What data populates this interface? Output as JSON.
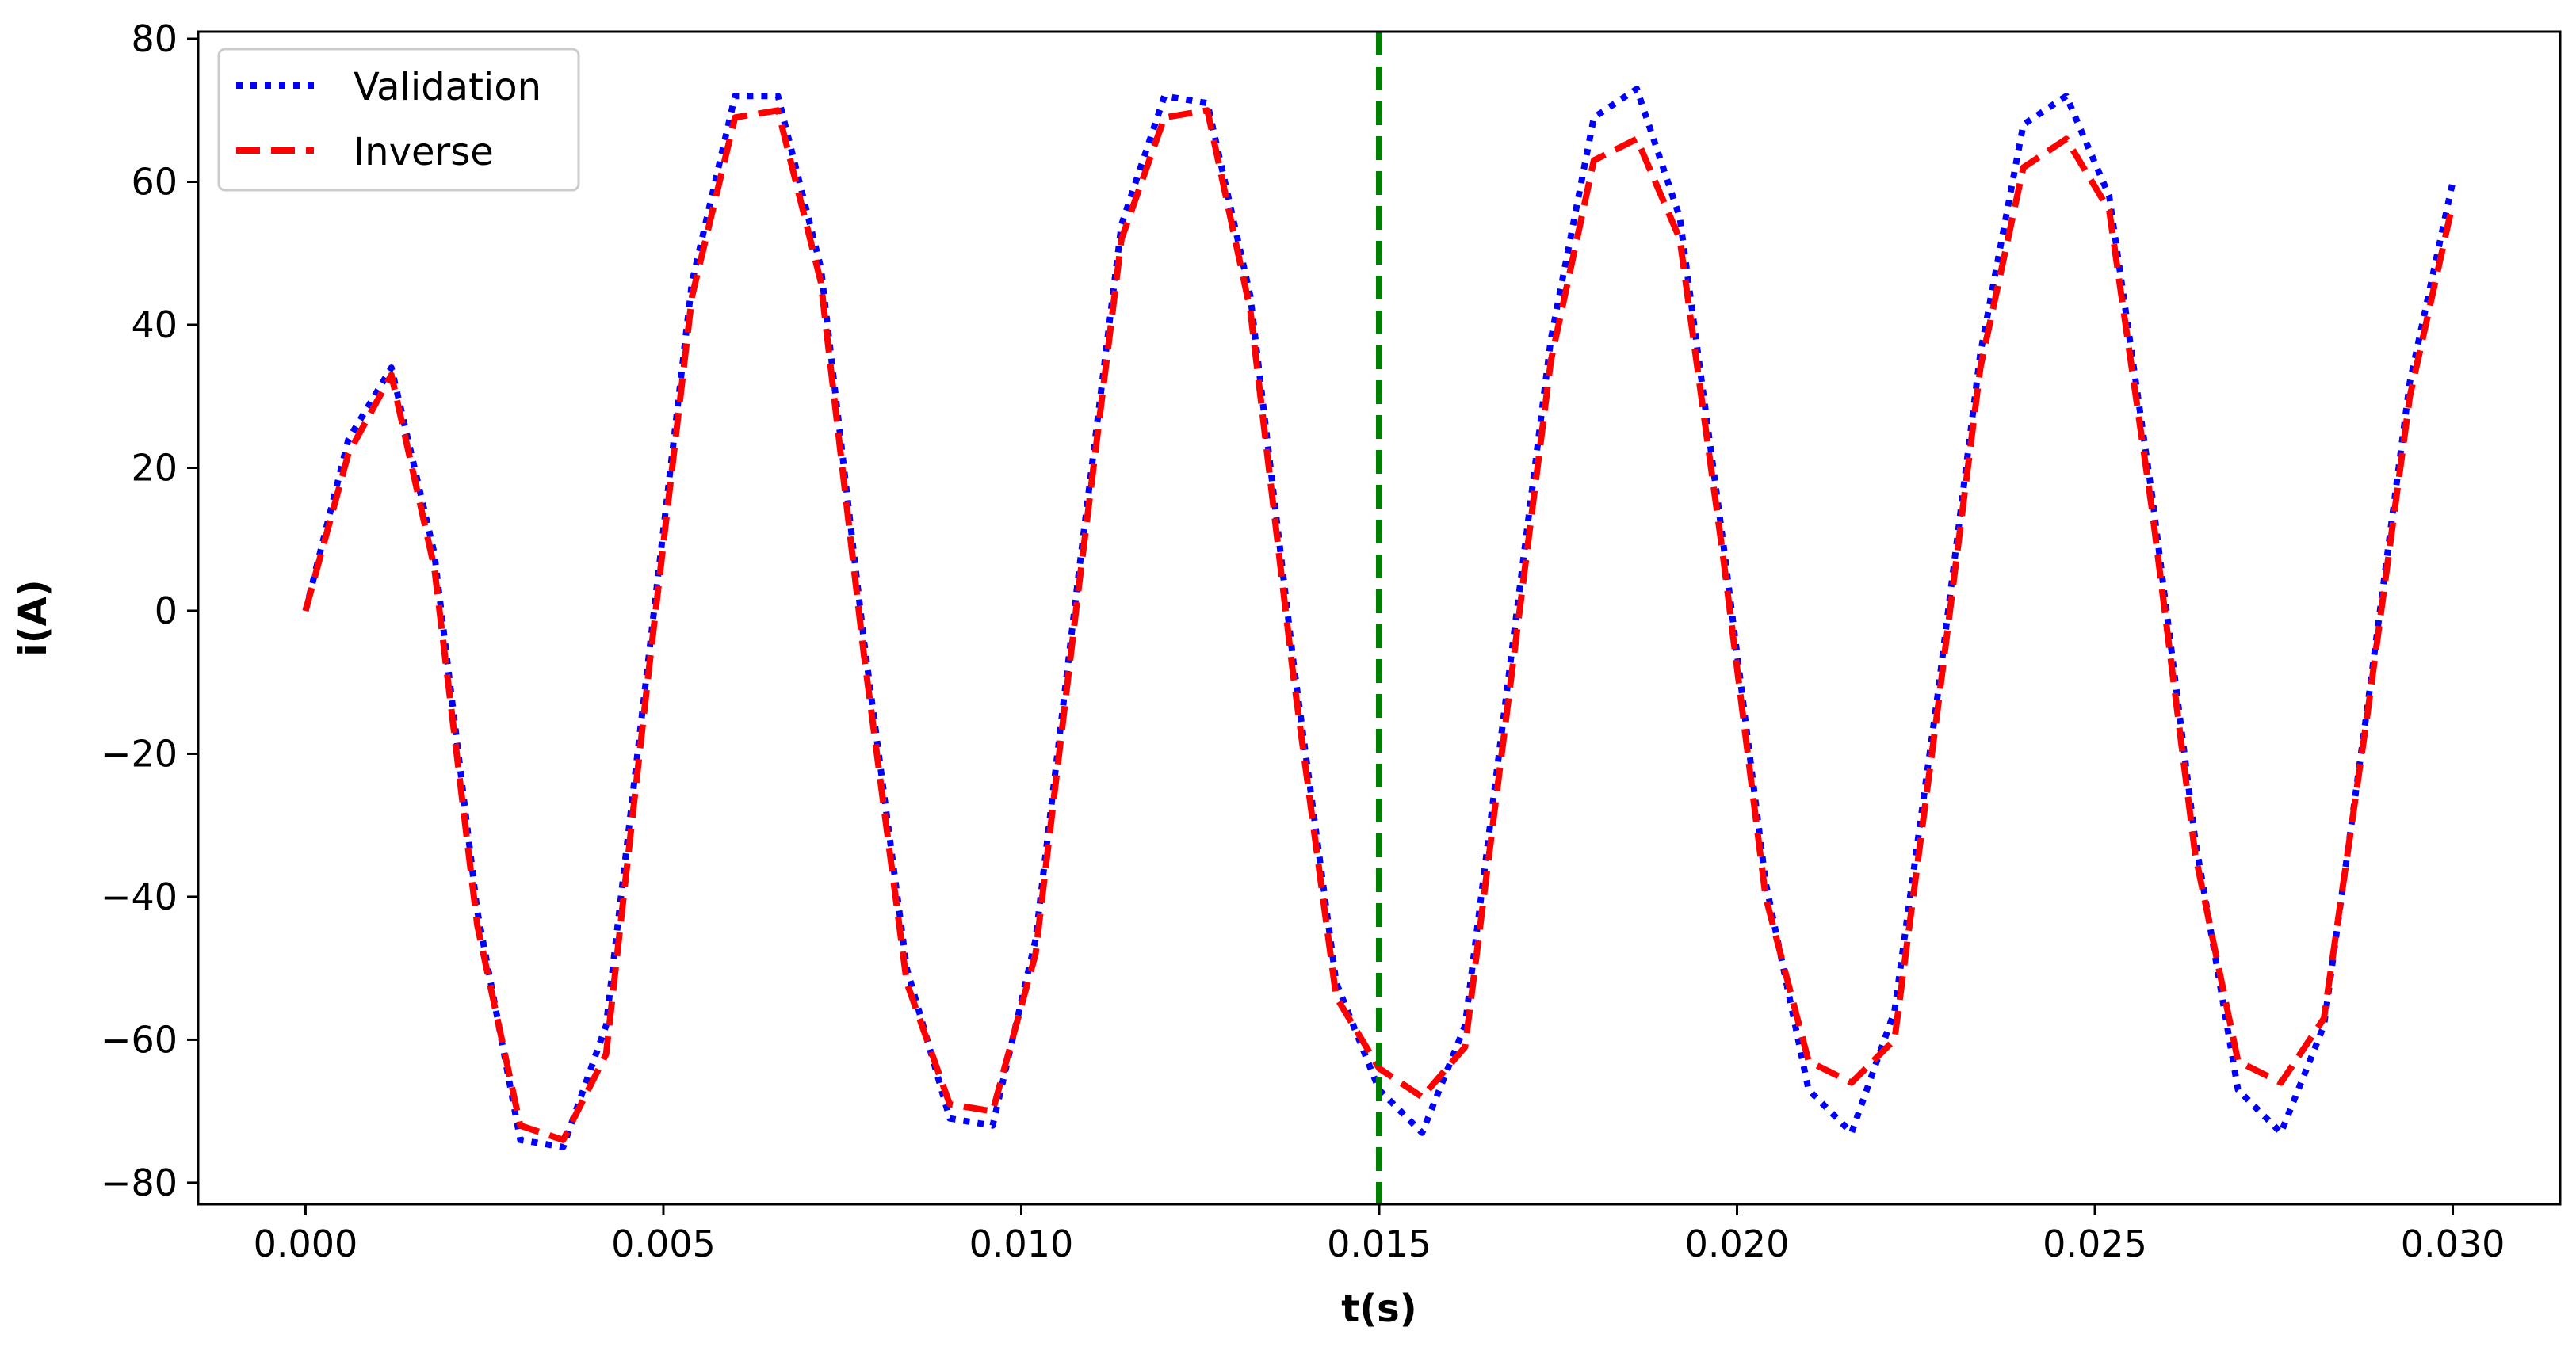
{
  "chart_data": {
    "type": "line",
    "title": "",
    "xlabel": "t(s)",
    "ylabel": "i(A)",
    "xlim": [
      -0.0015,
      0.0315
    ],
    "ylim": [
      -83,
      81
    ],
    "xticks": [
      0.0,
      0.005,
      0.01,
      0.015,
      0.02,
      0.025,
      0.03
    ],
    "xtick_labels": [
      "0.000",
      "0.005",
      "0.010",
      "0.015",
      "0.020",
      "0.025",
      "0.030"
    ],
    "yticks": [
      80,
      60,
      40,
      20,
      0,
      -20,
      -40,
      -60,
      -80
    ],
    "ytick_labels": [
      "80",
      "60",
      "40",
      "20",
      "0",
      "−20",
      "−40",
      "−60",
      "−80"
    ],
    "grid": false,
    "legend_position": "top-left",
    "vline": {
      "x": 0.015,
      "color": "#008000",
      "style": "dashed"
    },
    "series": [
      {
        "name": "Validation",
        "color": "#0000ff",
        "style": "dotted",
        "x": [
          0.0,
          0.0006,
          0.0012,
          0.0018,
          0.0024,
          0.003,
          0.0036,
          0.0042,
          0.0048,
          0.0054,
          0.006,
          0.0066,
          0.0072,
          0.0078,
          0.0084,
          0.009,
          0.0096,
          0.0102,
          0.0108,
          0.0114,
          0.012,
          0.0126,
          0.0132,
          0.0138,
          0.0144,
          0.015,
          0.0156,
          0.0162,
          0.0168,
          0.0174,
          0.018,
          0.0186,
          0.0192,
          0.0198,
          0.0204,
          0.021,
          0.0216,
          0.0222,
          0.0228,
          0.0234,
          0.024,
          0.0246,
          0.0252,
          0.0258,
          0.0264,
          0.027,
          0.0276,
          0.0282,
          0.0288,
          0.0294,
          0.03
        ],
        "y": [
          0.0,
          24.0,
          34.0,
          8.0,
          -42.0,
          -74.0,
          -75.0,
          -58.0,
          -6.0,
          46.0,
          72.0,
          72.0,
          48.0,
          -4.0,
          -50.0,
          -71.0,
          -72.0,
          -46.0,
          5.0,
          54.0,
          72.0,
          71.0,
          44.0,
          -7.0,
          -52.0,
          -67.0,
          -73.0,
          -58.0,
          -10.0,
          38.0,
          69.0,
          73.0,
          55.0,
          10.0,
          -38.0,
          -67.0,
          -73.0,
          -56.0,
          -12.0,
          36.0,
          68.0,
          72.0,
          58.0,
          16.0,
          -32.0,
          -67.0,
          -73.0,
          -58.0,
          -14.0,
          32.0,
          60.0
        ]
      },
      {
        "name": "Inverse",
        "color": "#ff0000",
        "style": "dashed",
        "x": [
          0.0,
          0.0006,
          0.0012,
          0.0018,
          0.0024,
          0.003,
          0.0036,
          0.0042,
          0.0048,
          0.0054,
          0.006,
          0.0066,
          0.0072,
          0.0078,
          0.0084,
          0.009,
          0.0096,
          0.0102,
          0.0108,
          0.0114,
          0.012,
          0.0126,
          0.0132,
          0.0138,
          0.0144,
          0.015,
          0.0156,
          0.0162,
          0.0168,
          0.0174,
          0.018,
          0.0186,
          0.0192,
          0.0198,
          0.0204,
          0.021,
          0.0216,
          0.0222,
          0.0228,
          0.0234,
          0.024,
          0.0246,
          0.0252,
          0.0258,
          0.0264,
          0.027,
          0.0276,
          0.0282,
          0.0288,
          0.0294,
          0.03
        ],
        "y": [
          0.0,
          22.0,
          33.0,
          6.0,
          -44.0,
          -72.0,
          -74.0,
          -62.0,
          -8.0,
          44.0,
          69.0,
          70.0,
          46.0,
          -6.0,
          -52.0,
          -69.0,
          -70.0,
          -48.0,
          3.0,
          52.0,
          69.0,
          70.0,
          42.0,
          -9.0,
          -54.0,
          -64.0,
          -68.0,
          -61.0,
          -13.0,
          35.0,
          63.0,
          66.0,
          52.0,
          8.0,
          -40.0,
          -63.0,
          -66.0,
          -60.0,
          -14.0,
          34.0,
          62.0,
          66.0,
          56.0,
          14.0,
          -34.0,
          -63.0,
          -66.0,
          -57.0,
          -15.0,
          30.0,
          57.0
        ]
      }
    ]
  }
}
